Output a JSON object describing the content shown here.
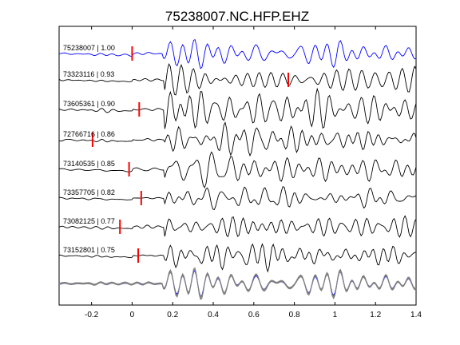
{
  "chart_data": {
    "type": "line",
    "title": "75238007.NC.HFP.EHZ",
    "xlabel": "",
    "ylabel": "",
    "xlim": [
      -0.36,
      1.4
    ],
    "x_ticks": [
      "-0.2",
      "0",
      "0.2",
      "0.4",
      "0.6",
      "0.8",
      "1",
      "1.2",
      "1.4"
    ],
    "x_tick_values": [
      -0.2,
      0,
      0.2,
      0.4,
      0.6,
      0.8,
      1.0,
      1.2,
      1.4
    ],
    "grid": false,
    "series": [
      {
        "name": "75238007 | 1.00",
        "pick": 0.0,
        "color": "#0000ff"
      },
      {
        "name": "73323116 | 0.93",
        "pick": 0.77,
        "color": "#000000"
      },
      {
        "name": "73605361 | 0.90",
        "pick": 0.035,
        "color": "#000000"
      },
      {
        "name": "72766716 | 0.86",
        "pick": -0.195,
        "color": "#000000"
      },
      {
        "name": "73140535 | 0.85",
        "pick": -0.015,
        "color": "#000000"
      },
      {
        "name": "73357705 | 0.82",
        "pick": 0.045,
        "color": "#000000"
      },
      {
        "name": "73082125 | 0.77",
        "pick": -0.06,
        "color": "#000000"
      },
      {
        "name": "73152801 | 0.75",
        "pick": 0.03,
        "color": "#000000"
      }
    ],
    "stack_label": "",
    "colors": {
      "reference": "#0000ff",
      "trace": "#000000",
      "pick": "#ff0000",
      "stack": "#808080"
    }
  }
}
